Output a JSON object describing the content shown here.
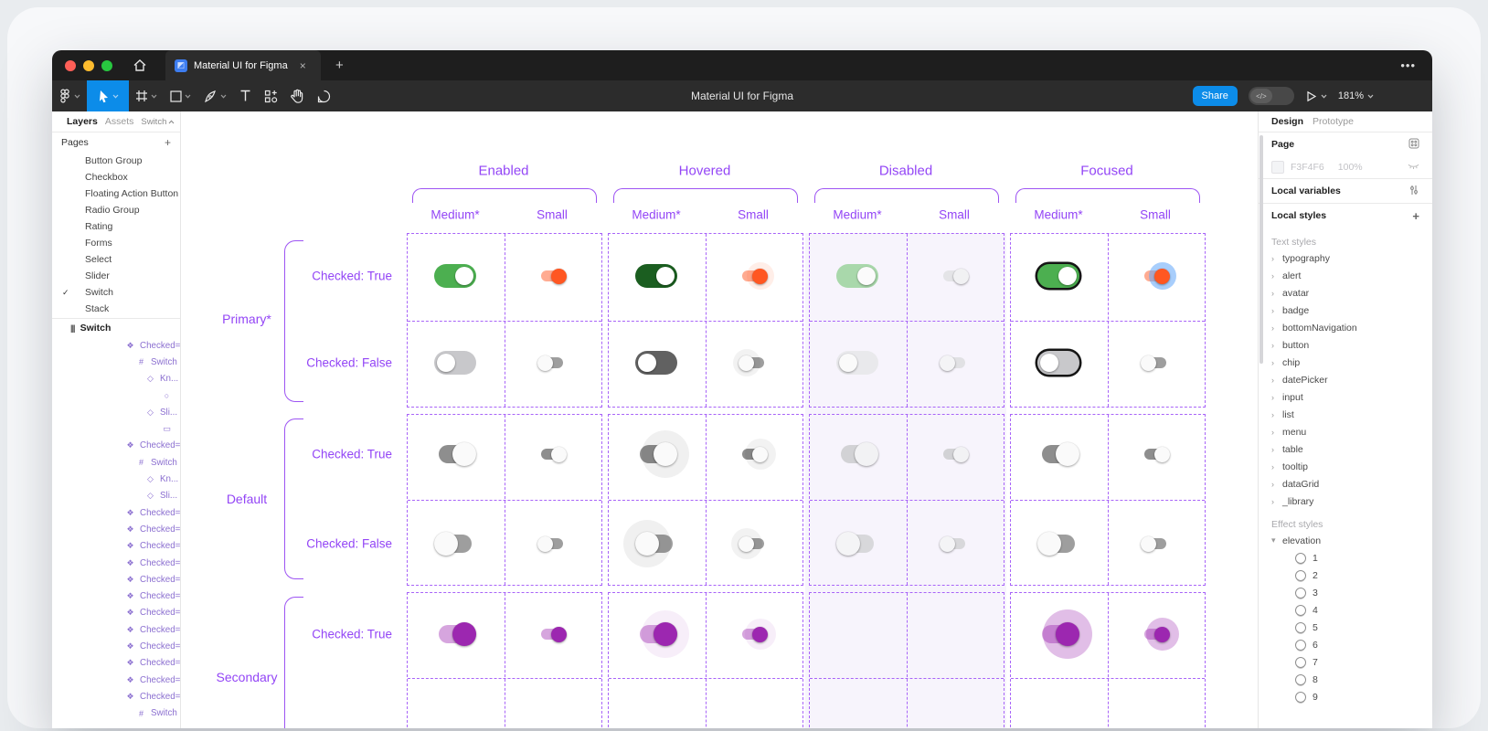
{
  "window": {
    "tab_title": "Material UI for Figma",
    "tab_close": "×",
    "new_tab": "+",
    "more": "•••",
    "toolbar_title": "Material UI for Figma",
    "share_label": "Share",
    "dev_toggle_icon": "</>",
    "zoom_level": "181%"
  },
  "colors": {
    "accent_blue": "#0c8ce9",
    "canvas_purple": "#9345f6",
    "traffic_red": "#ff5f57",
    "traffic_yellow": "#febc2e",
    "traffic_green": "#28c840",
    "primary_green": "#4caf50",
    "hovered_green": "#1b5e20",
    "orange_knob": "#ff5722",
    "orange_track": "#ffab91",
    "secondary_purple": "#9c27b0",
    "disabled_band": "#f7f4fc"
  },
  "left_sidebar": {
    "search_label": "",
    "tab_layers": "Layers",
    "tab_assets": "Assets",
    "page_selector": "Switch",
    "pages_header": "Pages",
    "pages_add": "+",
    "pages": [
      "Button Group",
      "Checkbox",
      "Floating Action Button",
      "Radio Group",
      "Rating",
      "Forms",
      "Select",
      "Slider",
      "Switch",
      "Stack"
    ],
    "selected_page": "Switch",
    "section_header": "Switch",
    "layers": [
      {
        "icon": "component",
        "label": "Checked=T...",
        "depth": 1
      },
      {
        "icon": "frame",
        "label": "Switch",
        "depth": 2
      },
      {
        "icon": "instance",
        "label": "Kn...",
        "depth": 3
      },
      {
        "icon": "ellipse",
        "label": "",
        "depth": 4
      },
      {
        "icon": "instance",
        "label": "Sli...",
        "depth": 3
      },
      {
        "icon": "rect",
        "label": "",
        "depth": 4
      },
      {
        "icon": "component",
        "label": "Checked=T...",
        "depth": 1
      },
      {
        "icon": "frame",
        "label": "Switch",
        "depth": 2
      },
      {
        "icon": "instance",
        "label": "Kn...",
        "depth": 3
      },
      {
        "icon": "instance",
        "label": "Sli...",
        "depth": 3
      },
      {
        "icon": "component",
        "label": "Checked=T...",
        "depth": 1
      },
      {
        "icon": "component",
        "label": "Checked=T...",
        "depth": 1
      },
      {
        "icon": "component",
        "label": "Checked=T...",
        "depth": 1
      },
      {
        "icon": "component",
        "label": "Checked=T...",
        "depth": 1
      },
      {
        "icon": "component",
        "label": "Checked=T...",
        "depth": 1
      },
      {
        "icon": "component",
        "label": "Checked=T...",
        "depth": 1
      },
      {
        "icon": "component",
        "label": "Checked=F...",
        "depth": 1
      },
      {
        "icon": "component",
        "label": "Checked=F...",
        "depth": 1
      },
      {
        "icon": "component",
        "label": "Checked=F...",
        "depth": 1
      },
      {
        "icon": "component",
        "label": "Checked=F...",
        "depth": 1
      },
      {
        "icon": "component",
        "label": "Checked=F...",
        "depth": 1
      },
      {
        "icon": "component",
        "label": "Checked=F...",
        "depth": 1
      },
      {
        "icon": "frame",
        "label": "Switch",
        "depth": 2
      }
    ]
  },
  "right_sidebar": {
    "tab_design": "Design",
    "tab_prototype": "Prototype",
    "page_label": "Page",
    "page_color_hex": "F3F4F6",
    "page_color_opacity": "100%",
    "local_variables_label": "Local variables",
    "local_styles_label": "Local styles",
    "local_styles_add": "+",
    "text_styles_header": "Text styles",
    "text_styles": [
      "typography",
      "alert",
      "avatar",
      "badge",
      "bottomNavigation",
      "button",
      "chip",
      "datePicker",
      "input",
      "list",
      "menu",
      "table",
      "tooltip",
      "dataGrid",
      "_library"
    ],
    "effect_styles_header": "Effect styles",
    "effect_group": "elevation",
    "elevation_items": [
      "1",
      "2",
      "3",
      "4",
      "5",
      "6",
      "7",
      "8",
      "9"
    ]
  },
  "canvas": {
    "state_groups": [
      {
        "label": "Enabled",
        "sizes": [
          "Medium*",
          "Small"
        ]
      },
      {
        "label": "Hovered",
        "sizes": [
          "Medium*",
          "Small"
        ]
      },
      {
        "label": "Disabled",
        "sizes": [
          "Medium*",
          "Small"
        ]
      },
      {
        "label": "Focused",
        "sizes": [
          "Medium*",
          "Small"
        ]
      }
    ],
    "row_sections": [
      {
        "label": "Primary*",
        "rows": [
          "Checked: True",
          "Checked: False"
        ]
      },
      {
        "label": "Default",
        "rows": [
          "Checked: True",
          "Checked: False"
        ]
      },
      {
        "label": "Secondary",
        "rows": [
          "Checked: True"
        ]
      }
    ],
    "switch_matrix": [
      [
        {
          "t": "pill",
          "on": true,
          "track": "#4caf50",
          "knob": "#ffffff"
        },
        {
          "t": "mui-sm",
          "on": true,
          "track": "#ffab91",
          "knob": "#ff5722"
        },
        {
          "t": "pill",
          "on": true,
          "track": "#1b5e20",
          "knob": "#ffffff"
        },
        {
          "t": "mui-sm",
          "on": true,
          "track": "#ffab91",
          "knob": "#ff5722",
          "halo": "rgba(255,87,34,0.10)",
          "hs": 30
        },
        {
          "t": "pill",
          "on": true,
          "track": "#a9d8ab",
          "knob": "#fbfbfb"
        },
        {
          "t": "mui-sm",
          "on": true,
          "track": "#e4e4e7",
          "knob": "#f1f1f3"
        },
        {
          "t": "pill",
          "on": true,
          "track": "#4caf50",
          "knob": "#ffffff",
          "ring": true
        },
        {
          "t": "mui-sm",
          "on": true,
          "track": "#ffab91",
          "knob": "#ff5722",
          "halo": "rgba(97,165,250,0.55)",
          "hs": 30
        }
      ],
      [
        {
          "t": "pill",
          "on": false,
          "track": "#c8c8cb",
          "knob": "#ffffff"
        },
        {
          "t": "mui-sm",
          "on": false,
          "track": "#9e9e9e",
          "knob": "#fafafa"
        },
        {
          "t": "pill",
          "on": false,
          "track": "#616161",
          "knob": "#ffffff"
        },
        {
          "t": "mui-sm",
          "on": false,
          "track": "#9e9e9e",
          "knob": "#fafafa",
          "halo": "rgba(0,0,0,0.05)",
          "hs": 30
        },
        {
          "t": "pill",
          "on": false,
          "track": "#e9e9ec",
          "knob": "#fafafa"
        },
        {
          "t": "mui-sm",
          "on": false,
          "track": "#e1e1e4",
          "knob": "#f4f4f6"
        },
        {
          "t": "pill",
          "on": false,
          "track": "#c8c8cb",
          "knob": "#ffffff",
          "ring": true
        },
        {
          "t": "mui-sm",
          "on": false,
          "track": "#9e9e9e",
          "knob": "#fafafa"
        }
      ],
      [
        {
          "t": "mui-md",
          "on": true,
          "track": "#8e8e8e",
          "knob": "#fafafa"
        },
        {
          "t": "mui-sm",
          "on": true,
          "track": "#8e8e8e",
          "knob": "#fafafa"
        },
        {
          "t": "mui-md",
          "on": true,
          "track": "#8e8e8e",
          "knob": "#fafafa",
          "halo": "rgba(0,0,0,0.06)",
          "hs": 52
        },
        {
          "t": "mui-sm",
          "on": true,
          "track": "#8e8e8e",
          "knob": "#fafafa",
          "halo": "rgba(0,0,0,0.05)",
          "hs": 34
        },
        {
          "t": "mui-md",
          "on": true,
          "track": "#d2d2d5",
          "knob": "#f2f2f4"
        },
        {
          "t": "mui-sm",
          "on": true,
          "track": "#d2d2d5",
          "knob": "#f2f2f4"
        },
        {
          "t": "mui-md",
          "on": true,
          "track": "#8e8e8e",
          "knob": "#fafafa"
        },
        {
          "t": "mui-sm",
          "on": true,
          "track": "#8e8e8e",
          "knob": "#fafafa"
        }
      ],
      [
        {
          "t": "mui-md",
          "on": false,
          "track": "#9e9e9e",
          "knob": "#fafafa"
        },
        {
          "t": "mui-sm",
          "on": false,
          "track": "#9e9e9e",
          "knob": "#fafafa"
        },
        {
          "t": "mui-md",
          "on": false,
          "track": "#9e9e9e",
          "knob": "#fafafa",
          "halo": "rgba(0,0,0,0.06)",
          "hs": 52
        },
        {
          "t": "mui-sm",
          "on": false,
          "track": "#9e9e9e",
          "knob": "#fafafa",
          "halo": "rgba(0,0,0,0.05)",
          "hs": 34
        },
        {
          "t": "mui-md",
          "on": false,
          "track": "#d8d8db",
          "knob": "#f4f4f6"
        },
        {
          "t": "mui-sm",
          "on": false,
          "track": "#d8d8db",
          "knob": "#f4f4f6"
        },
        {
          "t": "mui-md",
          "on": false,
          "track": "#9e9e9e",
          "knob": "#fafafa"
        },
        {
          "t": "mui-sm",
          "on": false,
          "track": "#9e9e9e",
          "knob": "#fafafa"
        }
      ],
      [
        {
          "t": "mui-md",
          "on": true,
          "track": "#d6a5de",
          "knob": "#9c27b0"
        },
        {
          "t": "mui-sm",
          "on": true,
          "track": "#d6a5de",
          "knob": "#9c27b0"
        },
        {
          "t": "mui-md",
          "on": true,
          "track": "#d6a5de",
          "knob": "#9c27b0",
          "halo": "rgba(156,39,176,0.08)",
          "hs": 52
        },
        {
          "t": "mui-sm",
          "on": true,
          "track": "#d6a5de",
          "knob": "#9c27b0",
          "halo": "rgba(156,39,176,0.08)",
          "hs": 34
        },
        null,
        null,
        {
          "t": "mui-md",
          "on": true,
          "track": "#d6a5de",
          "knob": "#9c27b0",
          "halo": "rgba(156,39,176,0.30)",
          "hs": 54
        },
        {
          "t": "mui-sm",
          "on": true,
          "track": "#d6a5de",
          "knob": "#9c27b0",
          "halo": "rgba(156,39,176,0.30)",
          "hs": 36
        }
      ]
    ]
  }
}
